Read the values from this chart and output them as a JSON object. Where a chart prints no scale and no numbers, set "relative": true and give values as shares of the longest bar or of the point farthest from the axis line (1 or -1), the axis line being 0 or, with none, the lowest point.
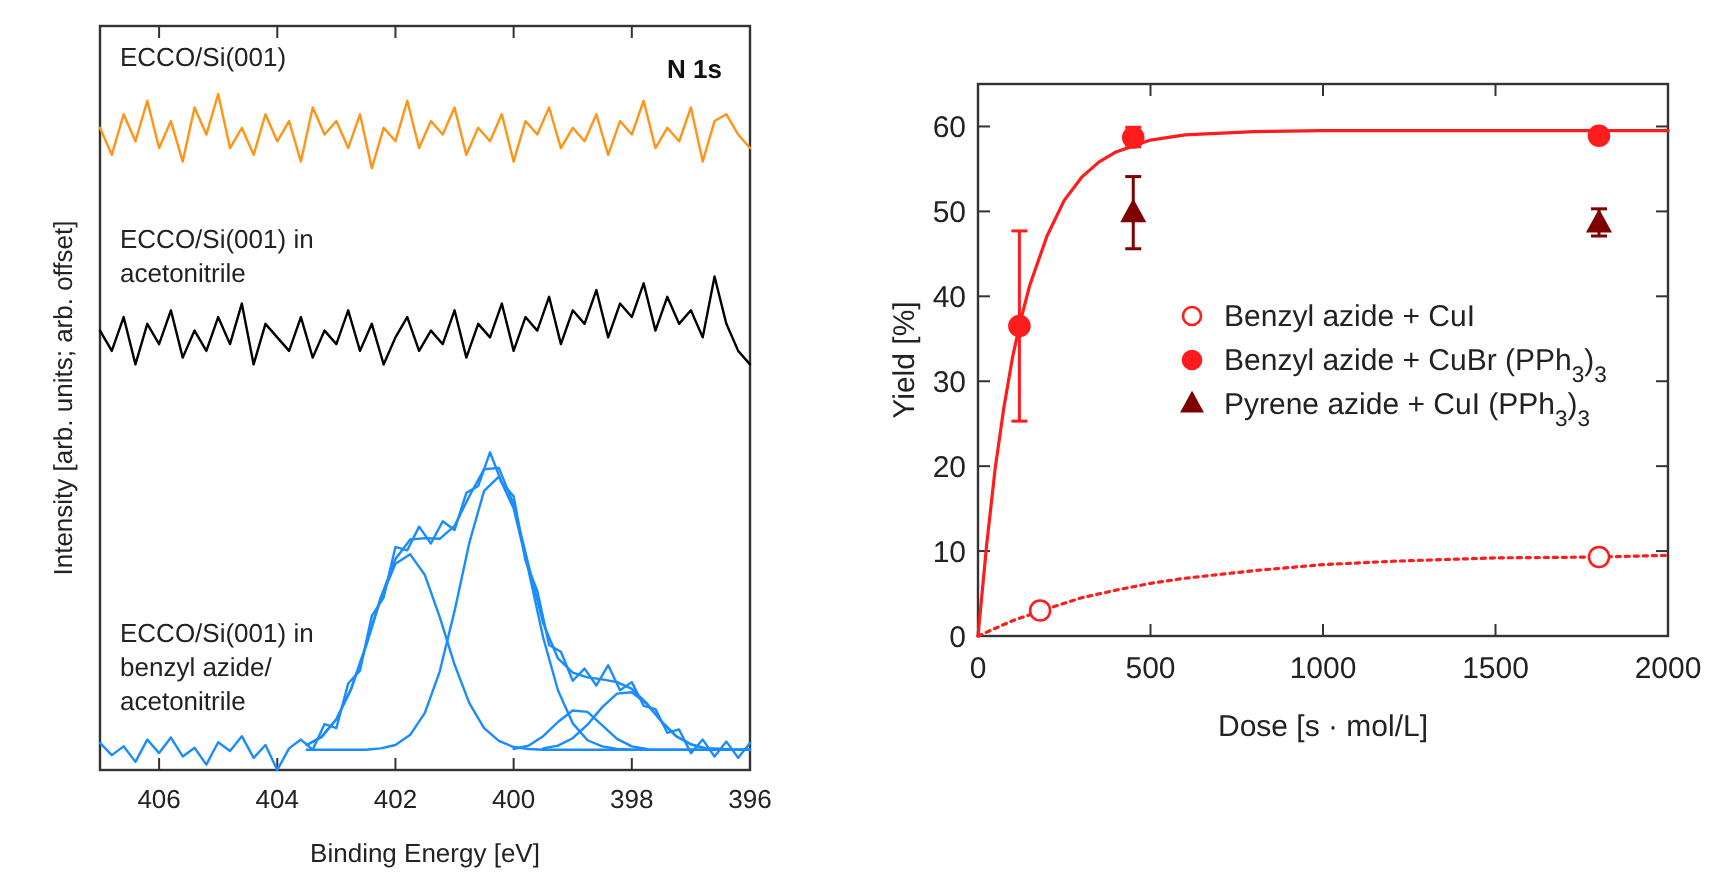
{
  "chart_data": [
    {
      "type": "line",
      "title": "N 1s",
      "xlabel": "Binding Energy [eV]",
      "ylabel": "Intensity [arb. units; arb. offset]",
      "relative": true,
      "xlim": [
        407,
        396
      ],
      "xticks": [
        406,
        404,
        402,
        400,
        398,
        396
      ],
      "x": [
        407.0,
        406.8,
        406.6,
        406.4,
        406.2,
        406.0,
        405.8,
        405.6,
        405.4,
        405.2,
        405.0,
        404.8,
        404.6,
        404.4,
        404.2,
        404.0,
        403.8,
        403.6,
        403.4,
        403.2,
        403.0,
        402.8,
        402.6,
        402.4,
        402.2,
        402.0,
        401.8,
        401.6,
        401.4,
        401.2,
        401.0,
        400.8,
        400.6,
        400.4,
        400.2,
        400.0,
        399.8,
        399.6,
        399.4,
        399.2,
        399.0,
        398.8,
        398.6,
        398.4,
        398.2,
        398.0,
        397.8,
        397.6,
        397.4,
        397.2,
        397.0,
        396.8,
        396.6,
        396.4,
        396.2,
        396.0
      ],
      "series": [
        {
          "name": "ECCO/Si(001)",
          "color": "#ff9416",
          "values": [
            0.95,
            0.91,
            0.97,
            0.93,
            0.99,
            0.92,
            0.96,
            0.9,
            0.98,
            0.94,
            1.0,
            0.92,
            0.95,
            0.91,
            0.97,
            0.93,
            0.96,
            0.9,
            0.98,
            0.94,
            0.96,
            0.92,
            0.97,
            0.89,
            0.95,
            0.93,
            0.99,
            0.92,
            0.96,
            0.94,
            0.98,
            0.91,
            0.95,
            0.93,
            0.97,
            0.9,
            0.96,
            0.94,
            0.98,
            0.92,
            0.95,
            0.93,
            0.97,
            0.91,
            0.96,
            0.94,
            0.99,
            0.92,
            0.95,
            0.93,
            0.98,
            0.9,
            0.96,
            0.97,
            0.94,
            0.92
          ]
        },
        {
          "name": "ECCO/Si(001) in acetonitrile",
          "color": "#000000",
          "values": [
            0.65,
            0.62,
            0.67,
            0.6,
            0.66,
            0.63,
            0.68,
            0.61,
            0.65,
            0.62,
            0.67,
            0.63,
            0.69,
            0.6,
            0.66,
            0.64,
            0.62,
            0.67,
            0.61,
            0.65,
            0.63,
            0.68,
            0.62,
            0.66,
            0.6,
            0.64,
            0.67,
            0.62,
            0.65,
            0.63,
            0.68,
            0.61,
            0.66,
            0.64,
            0.69,
            0.62,
            0.67,
            0.65,
            0.7,
            0.63,
            0.68,
            0.66,
            0.71,
            0.64,
            0.69,
            0.67,
            0.72,
            0.65,
            0.7,
            0.66,
            0.68,
            0.64,
            0.73,
            0.66,
            0.62,
            0.6
          ]
        },
        {
          "name": "ECCO/Si(001) in benzyl azide/acetonitrile",
          "color": "#1a8cff",
          "values": [
            0.04,
            0.022,
            0.035,
            0.012,
            0.045,
            0.025,
            0.048,
            0.02,
            0.033,
            0.008,
            0.041,
            0.028,
            0.05,
            0.018,
            0.037,
            0.0,
            0.032,
            0.045,
            0.03,
            0.068,
            0.062,
            0.128,
            0.147,
            0.228,
            0.255,
            0.33,
            0.325,
            0.36,
            0.335,
            0.368,
            0.355,
            0.41,
            0.42,
            0.47,
            0.425,
            0.405,
            0.31,
            0.265,
            0.185,
            0.175,
            0.132,
            0.15,
            0.125,
            0.155,
            0.118,
            0.13,
            0.095,
            0.09,
            0.055,
            0.06,
            0.025,
            0.045,
            0.02,
            0.042,
            0.018,
            0.04
          ]
        },
        {
          "color": "#1a8cff",
          "x": [
            403.5,
            403.25,
            403.0,
            402.75,
            402.5,
            402.25,
            402.0,
            401.75,
            401.5,
            401.25,
            401.0,
            400.75,
            400.5,
            400.25,
            400.0,
            399.75,
            399.5,
            399.25,
            399.0,
            398.75,
            398.5,
            398.25,
            398.0,
            397.75,
            397.5,
            397.25,
            397.0,
            396.75,
            396.5,
            396.25,
            396.0
          ],
          "values": [
            0.037,
            0.049,
            0.075,
            0.12,
            0.183,
            0.253,
            0.305,
            0.319,
            0.288,
            0.226,
            0.156,
            0.099,
            0.062,
            0.043,
            0.034,
            0.031,
            0.03,
            0.03,
            0.03,
            0.03,
            0.03,
            0.03,
            0.03,
            0.03,
            0.03,
            0.03,
            0.03,
            0.03,
            0.03,
            0.03,
            0.03
          ]
        },
        {
          "color": "#1a8cff",
          "x": [
            403.5,
            403.25,
            403.0,
            402.75,
            402.5,
            402.25,
            402.0,
            401.75,
            401.5,
            401.25,
            401.0,
            400.75,
            400.5,
            400.25,
            400.0,
            399.75,
            399.5,
            399.25,
            399.0,
            398.75,
            398.5,
            398.25,
            398.0,
            397.75,
            397.5,
            397.25,
            397.0,
            396.75,
            396.5,
            396.25,
            396.0
          ],
          "values": [
            0.03,
            0.03,
            0.03,
            0.03,
            0.03,
            0.032,
            0.037,
            0.052,
            0.085,
            0.146,
            0.235,
            0.336,
            0.413,
            0.434,
            0.387,
            0.296,
            0.196,
            0.118,
            0.069,
            0.044,
            0.035,
            0.031,
            0.03,
            0.03,
            0.03,
            0.03,
            0.03,
            0.03,
            0.03,
            0.03,
            0.03
          ]
        },
        {
          "color": "#1a8cff",
          "x": [
            400.0,
            399.75,
            399.5,
            399.25,
            399.0,
            398.75,
            398.5,
            398.25,
            398.0,
            397.75
          ],
          "values": [
            0.031,
            0.036,
            0.05,
            0.071,
            0.088,
            0.086,
            0.066,
            0.046,
            0.035,
            0.031
          ]
        },
        {
          "color": "#1a8cff",
          "x": [
            399.5,
            399.25,
            399.0,
            398.75,
            398.5,
            398.25,
            398.0,
            397.75,
            397.5,
            397.25,
            397.0,
            396.75,
            396.5
          ],
          "values": [
            0.032,
            0.036,
            0.047,
            0.067,
            0.093,
            0.113,
            0.115,
            0.098,
            0.072,
            0.05,
            0.038,
            0.032,
            0.031
          ]
        },
        {
          "color": "#1a8cff",
          "x": [
            403.5,
            403.25,
            403.0,
            402.75,
            402.5,
            402.25,
            402.0,
            401.75,
            401.5,
            401.25,
            401.0,
            400.75,
            400.5,
            400.25,
            400.0,
            399.75,
            399.5,
            399.25,
            399.0,
            398.75,
            398.5,
            398.25,
            398.0,
            397.75,
            397.5,
            397.25,
            397.0,
            396.75,
            396.5,
            396.25,
            396.0
          ],
          "values": [
            0.037,
            0.049,
            0.075,
            0.12,
            0.184,
            0.255,
            0.312,
            0.341,
            0.343,
            0.342,
            0.361,
            0.405,
            0.445,
            0.447,
            0.393,
            0.304,
            0.217,
            0.165,
            0.144,
            0.137,
            0.134,
            0.13,
            0.12,
            0.099,
            0.072,
            0.05,
            0.038,
            0.032,
            0.031,
            0.03,
            0.03
          ]
        }
      ]
    },
    {
      "type": "scatter",
      "xlabel": "Dose [s · mol/L]",
      "ylabel": "Yield [%]",
      "xlim": [
        0,
        2000
      ],
      "xticks": [
        0,
        500,
        1000,
        1500,
        2000
      ],
      "ylim": [
        0,
        65
      ],
      "yticks": [
        0,
        10,
        20,
        30,
        40,
        50,
        60
      ],
      "legend": "right",
      "series": [
        {
          "type": "line",
          "color": "#ff1c1c",
          "marker": "none",
          "x": [
            0,
            25,
            50,
            75,
            100,
            125,
            150,
            200,
            250,
            300,
            350,
            400,
            500,
            600,
            800,
            1000,
            1500,
            2000
          ],
          "values": [
            0,
            10.7,
            19.8,
            26.9,
            32.8,
            37.4,
            41.3,
            47.1,
            51.3,
            54.0,
            55.8,
            57.0,
            58.4,
            59.0,
            59.4,
            59.5,
            59.5,
            59.5
          ]
        },
        {
          "type": "line",
          "color": "#ff1c1c",
          "marker": "none",
          "line_style": "dotted",
          "x": [
            0,
            100,
            200,
            300,
            400,
            500,
            600,
            800,
            1000,
            1200,
            1500,
            1800,
            2000
          ],
          "values": [
            0,
            1.8,
            3.2,
            4.5,
            5.4,
            6.2,
            6.8,
            7.7,
            8.4,
            8.8,
            9.2,
            9.3,
            9.5
          ]
        },
        {
          "name": "Benzyl azide + CuI",
          "color": "#ff1c1c",
          "marker": "circle",
          "x": [
            180,
            1800
          ],
          "values": [
            3.0,
            9.3
          ]
        },
        {
          "name": "Benzyl azide + CuBr (PPh$_{3}$)$_{3}$",
          "color": "#ff1c1c",
          "marker": "circle",
          "x": [
            120,
            450,
            1800
          ],
          "values": [
            36.5,
            58.7,
            58.9
          ],
          "errors": [
            [
              25.3,
              47.7
            ],
            [
              57.6,
              59.9
            ],
            [
              58.4,
              59.4
            ]
          ]
        },
        {
          "name": "Pyrene azide + CuI (PPh$_{3}$)$_{3}$",
          "color": "#7f0000",
          "marker": "triangle",
          "x": [
            450,
            1800
          ],
          "values": [
            49.8,
            48.6
          ],
          "errors": [
            [
              45.6,
              54.1
            ],
            [
              47.1,
              50.3
            ]
          ]
        }
      ]
    }
  ]
}
